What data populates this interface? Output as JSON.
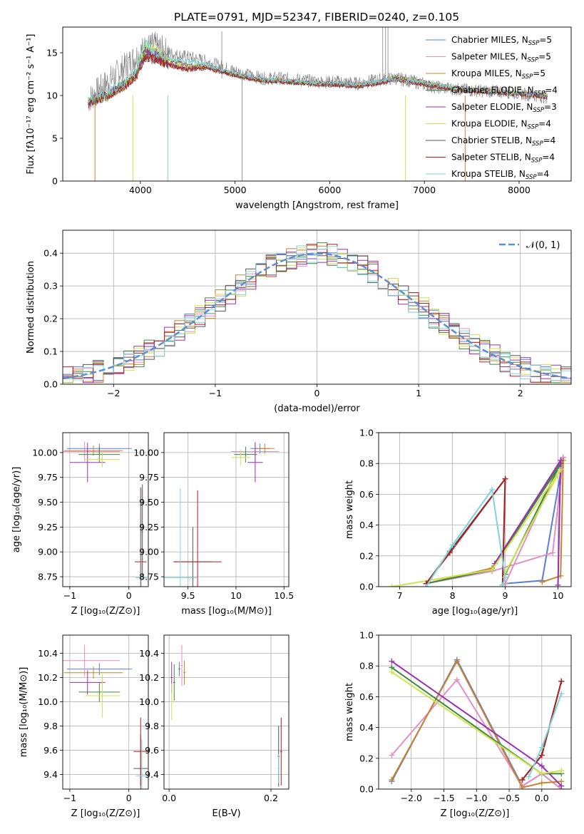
{
  "figure_title": "PLATE=0791, MJD=52347, FIBERID=0240, z=0.105",
  "chart_data": [
    {
      "id": "spectrum",
      "type": "line",
      "xlabel": "wavelength [Angstrom, rest frame]",
      "ylabel": "Flux [fλ10⁻¹⁷ erg cm⁻² s⁻¹ A⁻¹]",
      "xlim": [
        3180,
        8550
      ],
      "ylim": [
        0,
        18
      ],
      "xticks": [
        4000,
        5000,
        6000,
        7000,
        8000
      ],
      "yticks": [
        0,
        5,
        10,
        15
      ],
      "grid": false,
      "legend_placement": "top-right",
      "observed": {
        "color": "#808080",
        "x": [
          3450,
          3550,
          3650,
          3750,
          3850,
          3950,
          4050,
          4150,
          4250,
          4350,
          4500,
          4700,
          4900,
          5100,
          5300,
          5500,
          5700,
          5900,
          6100,
          6300,
          6500,
          6700,
          6900,
          7100,
          7300,
          7500,
          7700,
          7900,
          8100,
          8300
        ],
        "y": [
          9.5,
          10.5,
          11.5,
          12.5,
          13.5,
          14.5,
          15.5,
          15.8,
          15.2,
          14.8,
          14.5,
          14.0,
          13.2,
          12.5,
          12.0,
          12.0,
          11.8,
          11.6,
          11.6,
          11.4,
          11.8,
          12.0,
          11.6,
          11.0,
          10.8,
          10.6,
          10.5,
          10.4,
          10.1,
          9.8
        ]
      },
      "series": [
        {
          "name": "Chabrier MILES, N$_{SSP}$=5",
          "label_main": "Chabrier MILES, N",
          "label_sub": "SSP",
          "label_tail": "=5",
          "color": "#5a7fd1",
          "y": [
            9.2,
            9.6,
            9.9,
            10.6,
            11.4,
            12.3,
            15.0,
            14.5,
            14.0,
            13.5,
            13.2,
            13.5,
            12.8,
            12.2,
            11.8,
            11.8,
            11.6,
            11.4,
            11.4,
            11.3,
            11.5,
            12.0,
            11.6,
            11.2,
            10.8,
            10.6,
            10.5,
            10.3,
            10.2,
            9.9
          ]
        },
        {
          "name": "Salpeter MILES, N$_{SSP}$=5",
          "label_main": "Salpeter MILES, N",
          "label_sub": "SSP",
          "label_tail": "=5",
          "color": "#e58fc4",
          "y": [
            9.2,
            9.6,
            9.9,
            10.6,
            11.4,
            12.3,
            15.0,
            14.5,
            14.0,
            13.5,
            13.2,
            13.5,
            12.8,
            12.2,
            11.8,
            11.8,
            11.6,
            11.4,
            11.4,
            11.3,
            11.5,
            12.0,
            11.6,
            11.2,
            10.8,
            10.6,
            10.5,
            10.3,
            10.2,
            9.9
          ]
        },
        {
          "name": "Kroupa MILES, N$_{SSP}$=5",
          "label_main": "Kroupa MILES, N",
          "label_sub": "SSP",
          "label_tail": "=5",
          "color": "#c8842e",
          "y": [
            9.2,
            9.6,
            9.9,
            10.6,
            11.4,
            12.3,
            15.0,
            14.5,
            14.0,
            13.5,
            13.2,
            13.5,
            12.8,
            12.2,
            11.8,
            11.8,
            11.6,
            11.4,
            11.4,
            11.3,
            11.5,
            12.0,
            11.6,
            11.2,
            10.8,
            10.6,
            10.5,
            10.3,
            10.2,
            9.9
          ]
        },
        {
          "name": "Chabrier ELODIE, N$_{SSP}$=4",
          "label_main": "Chabrier ELODIE, N",
          "label_sub": "SSP",
          "label_tail": "=4",
          "color": "#3f8a3f",
          "y": [
            9.3,
            9.7,
            10.0,
            10.8,
            11.5,
            12.5,
            15.5,
            15.0,
            14.5,
            14.0,
            13.5,
            13.4,
            12.7,
            12.1,
            11.8,
            11.7,
            11.5,
            11.4,
            11.3,
            11.2,
            11.5,
            12.1,
            11.7,
            11.3,
            10.9,
            10.7,
            10.5,
            10.3,
            10.2,
            10.0
          ]
        },
        {
          "name": "Salpeter ELODIE, N$_{SSP}$=3",
          "label_main": "Salpeter ELODIE, N",
          "label_sub": "SSP",
          "label_tail": "=3",
          "color": "#9b2fb0",
          "y": [
            9.3,
            9.7,
            10.0,
            10.8,
            11.5,
            12.5,
            15.5,
            15.0,
            14.5,
            14.0,
            13.5,
            13.4,
            12.7,
            12.1,
            11.8,
            11.7,
            11.5,
            11.4,
            11.3,
            11.2,
            11.5,
            12.1,
            11.7,
            11.3,
            10.9,
            10.7,
            10.5,
            10.3,
            10.2,
            10.0
          ]
        },
        {
          "name": "Kroupa ELODIE, N$_{SSP}$=4",
          "label_main": "Kroupa ELODIE, N",
          "label_sub": "SSP",
          "label_tail": "=4",
          "color": "#cde44a",
          "y": [
            9.3,
            9.7,
            10.0,
            10.8,
            11.5,
            12.5,
            16.0,
            15.5,
            14.5,
            14.0,
            13.5,
            13.4,
            12.7,
            12.1,
            11.8,
            11.7,
            11.5,
            11.4,
            11.3,
            11.2,
            11.5,
            12.1,
            11.7,
            11.3,
            10.9,
            10.7,
            10.5,
            10.3,
            10.2,
            10.0
          ]
        },
        {
          "name": "Chabrier STELIB, N$_{SSP}$=4",
          "label_main": "Chabrier STELIB, N",
          "label_sub": "SSP",
          "label_tail": "=4",
          "color": "#555555",
          "y": [
            9.0,
            9.6,
            10.0,
            10.7,
            11.3,
            12.2,
            14.5,
            14.2,
            13.9,
            13.4,
            13.0,
            13.2,
            12.6,
            12.1,
            11.7,
            11.6,
            11.5,
            11.3,
            11.2,
            11.1,
            11.4,
            11.9,
            11.5,
            11.1,
            10.7,
            10.5,
            10.4,
            10.2,
            10.1,
            9.8
          ]
        },
        {
          "name": "Salpeter STELIB, N$_{SSP}$=4",
          "label_main": "Salpeter STELIB, N",
          "label_sub": "SSP",
          "label_tail": "=4",
          "color": "#b01f1f",
          "y": [
            9.0,
            9.6,
            10.0,
            10.7,
            11.3,
            12.2,
            14.5,
            14.2,
            13.9,
            13.4,
            13.0,
            13.2,
            12.6,
            12.1,
            11.7,
            11.6,
            11.5,
            11.3,
            11.2,
            11.1,
            11.4,
            11.9,
            11.5,
            11.1,
            10.7,
            10.5,
            10.4,
            10.2,
            10.1,
            9.8
          ]
        },
        {
          "name": "Kroupa STELIB, N$_{SSP}$=4",
          "label_main": "Kroupa STELIB, N",
          "label_sub": "SSP",
          "label_tail": "=4",
          "color": "#7fd3dd",
          "y": [
            9.4,
            9.8,
            10.2,
            11.0,
            11.8,
            12.8,
            16.2,
            15.0,
            14.6,
            14.2,
            14.0,
            13.6,
            12.9,
            12.3,
            11.9,
            11.8,
            11.6,
            11.5,
            11.4,
            11.3,
            11.6,
            12.0,
            11.7,
            11.3,
            10.9,
            10.6,
            10.5,
            10.3,
            10.2,
            10.0
          ]
        }
      ]
    },
    {
      "id": "residuals",
      "type": "line",
      "xlabel": "(data-model)/error",
      "ylabel": "Normed distribution",
      "xlim": [
        -2.5,
        2.5
      ],
      "ylim": [
        0,
        0.47
      ],
      "xticks": [
        -2,
        -1,
        0,
        1,
        2
      ],
      "yticks": [
        0.0,
        0.1,
        0.2,
        0.3,
        0.4
      ],
      "grid": true,
      "legend_placement": "top-right",
      "legend_label": "𝒩(0, 1)",
      "bin_width": 0.1,
      "reference": {
        "mean": 0,
        "sigma": 1,
        "color": "#5a8fd8"
      },
      "histograms_note": "one step histogram per model, colours as in the spectrum panel"
    },
    {
      "id": "age_vs_Z",
      "type": "scatter",
      "xlabel": "Z [log₁₀(Z/Z⊙)]",
      "ylabel": "age  [log₁₀(age/yr)]",
      "xlim": [
        -1.12,
        0.33
      ],
      "ylim": [
        8.65,
        10.2
      ],
      "xticks": [
        -1,
        0
      ],
      "yticks": [
        8.75,
        9.0,
        9.25,
        9.5,
        9.75,
        10.0
      ],
      "grid": true
    },
    {
      "id": "age_vs_mass",
      "type": "scatter",
      "xlabel": "mass [log₁₀(M/M⊙)]",
      "ylabel": "",
      "xlim": [
        9.25,
        10.55
      ],
      "ylim": [
        8.65,
        10.2
      ],
      "xticks": [
        9.5,
        10.0,
        10.5
      ],
      "yticks": [
        8.75,
        9.0,
        9.25,
        9.5,
        9.75,
        10.0
      ],
      "grid": true
    },
    {
      "id": "weight_vs_age",
      "type": "line",
      "xlabel": "age  [log₁₀(age/yr)]",
      "ylabel": "mass weight",
      "xlim": [
        6.6,
        10.25
      ],
      "ylim": [
        0,
        1.0
      ],
      "xticks": [
        7,
        8,
        9,
        10
      ],
      "yticks": [
        0.0,
        0.2,
        0.4,
        0.6,
        0.8,
        1.0
      ],
      "grid": true,
      "series": [
        {
          "color": "#5a7fd1",
          "x": [
            7.5,
            8.75,
            10.1,
            9.7,
            9.0
          ],
          "y": [
            0.02,
            0.12,
            0.84,
            0.04,
            0.02
          ]
        },
        {
          "color": "#e58fc4",
          "x": [
            7.5,
            8.75,
            9.9,
            10.1,
            9.0
          ],
          "y": [
            0.02,
            0.1,
            0.22,
            0.84,
            0.02
          ]
        },
        {
          "color": "#c8842e",
          "x": [
            7.5,
            8.75,
            10.1,
            10.05,
            9.7
          ],
          "y": [
            0.02,
            0.12,
            0.82,
            0.07,
            0.03
          ]
        },
        {
          "color": "#3f8a3f",
          "x": [
            7.5,
            8.75,
            10.05,
            9.0
          ],
          "y": [
            0.02,
            0.11,
            0.8,
            0.08
          ]
        },
        {
          "color": "#9b2fb0",
          "x": [
            8.8,
            10.05,
            10.0
          ],
          "y": [
            0.15,
            0.82,
            0.01
          ]
        },
        {
          "color": "#cde44a",
          "x": [
            6.85,
            8.75,
            10.05,
            9.0
          ],
          "y": [
            0.0,
            0.11,
            0.76,
            0.09
          ]
        },
        {
          "color": "#555555",
          "x": [
            7.5,
            7.95,
            9.0,
            8.95
          ],
          "y": [
            0.02,
            0.23,
            0.7,
            0.01
          ]
        },
        {
          "color": "#b01f1f",
          "x": [
            7.5,
            7.95,
            9.0,
            8.95
          ],
          "y": [
            0.02,
            0.22,
            0.7,
            0.01
          ]
        },
        {
          "color": "#7fd3dd",
          "x": [
            7.5,
            8.0,
            8.75,
            9.0,
            8.95
          ],
          "y": [
            0.0,
            0.27,
            0.63,
            0.06,
            0.01
          ]
        }
      ]
    },
    {
      "id": "mass_vs_Z",
      "type": "scatter",
      "xlabel": "Z [log₁₀(Z/Z⊙)]",
      "ylabel": "mass [log₁₀(M/M⊙)]",
      "xlim": [
        -1.12,
        0.33
      ],
      "ylim": [
        9.28,
        10.55
      ],
      "xticks": [
        -1,
        0
      ],
      "yticks": [
        9.4,
        9.6,
        9.8,
        10.0,
        10.2,
        10.4
      ],
      "grid": true
    },
    {
      "id": "mass_vs_EBV",
      "type": "scatter",
      "xlabel": "E(B-V)",
      "ylabel": "",
      "xlim": [
        -0.01,
        0.235
      ],
      "ylim": [
        9.28,
        10.55
      ],
      "xticks": [
        0.0,
        0.2
      ],
      "yticks": [
        9.4,
        9.6,
        9.8,
        10.0,
        10.2,
        10.4
      ],
      "grid": true
    },
    {
      "id": "weight_vs_Z",
      "type": "line",
      "xlabel": "Z [log₁₀(Z/Z⊙)]",
      "ylabel": "mass weight",
      "xlim": [
        -2.5,
        0.45
      ],
      "ylim": [
        0,
        1.0
      ],
      "xticks": [
        -2.0,
        -1.5,
        -1.0,
        -0.5,
        0.0
      ],
      "yticks": [
        0.0,
        0.2,
        0.4,
        0.6,
        0.8,
        1.0
      ],
      "grid": true,
      "series": [
        {
          "color": "#5a7fd1",
          "x": [
            -2.3,
            -1.3,
            -0.3,
            0.0,
            0.3
          ],
          "y": [
            0.05,
            0.84,
            0.02,
            0.1,
            0.0
          ]
        },
        {
          "color": "#e58fc4",
          "x": [
            -2.3,
            -1.3,
            -0.3,
            0.0,
            0.3
          ],
          "y": [
            0.22,
            0.71,
            0.02,
            0.1,
            0.0
          ]
        },
        {
          "color": "#c8842e",
          "x": [
            -2.3,
            -1.3,
            -0.3,
            0.0,
            0.3
          ],
          "y": [
            0.06,
            0.83,
            0.01,
            0.04,
            0.05
          ]
        },
        {
          "color": "#3f8a3f",
          "x": [
            -2.3,
            0.0,
            0.3
          ],
          "y": [
            0.79,
            0.1,
            0.1
          ]
        },
        {
          "color": "#9b2fb0",
          "x": [
            -2.3,
            0.0,
            0.3
          ],
          "y": [
            0.83,
            0.15,
            0.02
          ]
        },
        {
          "color": "#cde44a",
          "x": [
            -2.3,
            0.0,
            0.3
          ],
          "y": [
            0.76,
            0.1,
            0.12
          ]
        },
        {
          "color": "#555555",
          "x": [
            -0.3,
            0.0,
            0.3
          ],
          "y": [
            0.06,
            0.22,
            0.7
          ]
        },
        {
          "color": "#b01f1f",
          "x": [
            -0.3,
            0.0,
            0.3
          ],
          "y": [
            0.06,
            0.22,
            0.7
          ]
        },
        {
          "color": "#7fd3dd",
          "x": [
            -0.2,
            0.0,
            0.3
          ],
          "y": [
            0.08,
            0.27,
            0.62
          ]
        }
      ]
    }
  ]
}
